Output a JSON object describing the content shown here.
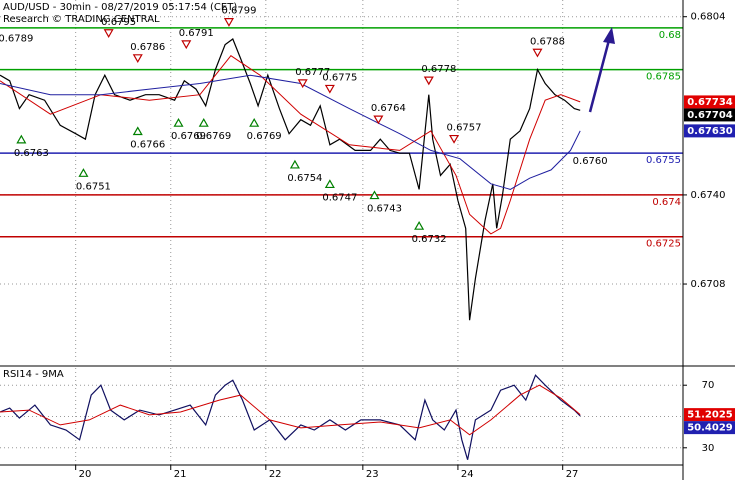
{
  "chart_data": [
    {
      "type": "line",
      "title": "AUD/USD - 30min - 08/27/2019 05:17:54 (CET)",
      "subtitle": "Research © TRADING CENTRAL",
      "xlim": [
        0,
        352
      ],
      "ylim": [
        0.668,
        0.681
      ],
      "yticks": [
        0.6804,
        {
          "value": 0.674,
          "label": "0.6740"
        },
        0.6708
      ],
      "grid": true,
      "series": [
        {
          "name": "AUD/USD",
          "color": "#000000",
          "x": [
            0,
            5,
            10,
            15,
            23,
            31,
            39,
            44,
            49,
            54,
            59,
            67,
            75,
            82,
            90,
            95,
            101,
            106,
            111,
            116,
            120,
            124,
            129,
            133,
            138,
            144,
            149,
            155,
            160,
            165,
            170,
            175,
            183,
            191,
            196,
            201,
            206,
            211,
            216,
            221,
            223,
            227,
            232,
            236,
            240,
            242,
            245,
            250,
            254,
            256,
            259,
            263,
            268,
            273,
            277,
            281,
            286,
            291,
            296,
            299
          ],
          "values": [
            0.6783,
            0.6781,
            0.6771,
            0.6776,
            0.6774,
            0.6765,
            0.6762,
            0.676,
            0.6776,
            0.6783,
            0.6776,
            0.6774,
            0.6776,
            0.6776,
            0.6774,
            0.6781,
            0.6778,
            0.6772,
            0.6785,
            0.6794,
            0.6796,
            0.6789,
            0.678,
            0.6772,
            0.6783,
            0.6771,
            0.6762,
            0.6767,
            0.6765,
            0.6772,
            0.6758,
            0.676,
            0.6756,
            0.6756,
            0.676,
            0.6756,
            0.6755,
            0.6755,
            0.6742,
            0.6776,
            0.676,
            0.6747,
            0.6751,
            0.6738,
            0.6728,
            0.6695,
            0.671,
            0.6731,
            0.6744,
            0.6728,
            0.674,
            0.676,
            0.6763,
            0.6771,
            0.6785,
            0.678,
            0.6776,
            0.6774,
            0.6771,
            0.67704
          ]
        },
        {
          "name": "MA fast",
          "color": "#d00000",
          "x": [
            0,
            26,
            52,
            77,
            103,
            119,
            134,
            155,
            180,
            206,
            222,
            235,
            242,
            253,
            258,
            263,
            273,
            281,
            289,
            299
          ],
          "values": [
            0.6781,
            0.6769,
            0.6776,
            0.6774,
            0.6776,
            0.679,
            0.6783,
            0.6769,
            0.6758,
            0.6756,
            0.6763,
            0.6747,
            0.6733,
            0.6726,
            0.6728,
            0.6738,
            0.676,
            0.6774,
            0.6776,
            0.67734
          ]
        },
        {
          "name": "MA slow",
          "color": "#2020a0",
          "x": [
            0,
            26,
            52,
            77,
            103,
            129,
            155,
            180,
            206,
            222,
            237,
            253,
            263,
            273,
            284,
            294,
            299
          ],
          "values": [
            0.678,
            0.6776,
            0.6776,
            0.6778,
            0.678,
            0.6783,
            0.678,
            0.6771,
            0.6762,
            0.6756,
            0.6753,
            0.6744,
            0.6742,
            0.6746,
            0.6749,
            0.6756,
            0.6763
          ]
        }
      ],
      "levels": [
        {
          "value": 0.68,
          "color": "#00a000"
        },
        {
          "value": 0.6785,
          "color": "#00a000"
        },
        {
          "value": 0.6755,
          "color": "#2020b0"
        },
        {
          "value": 0.674,
          "color": "#c00000"
        },
        {
          "value": 0.6725,
          "color": "#c00000"
        }
      ],
      "annotations": [
        {
          "x": 3,
          "value": 0.6789,
          "dir": "high",
          "marker": false
        },
        {
          "x": 56,
          "value": 0.6795,
          "dir": "high"
        },
        {
          "x": 71,
          "value": 0.6786,
          "dir": "high"
        },
        {
          "x": 96,
          "value": 0.6791,
          "dir": "high"
        },
        {
          "x": 118,
          "value": 0.6799,
          "dir": "high"
        },
        {
          "x": 156,
          "value": 0.6777,
          "dir": "high"
        },
        {
          "x": 170,
          "value": 0.6775,
          "dir": "high"
        },
        {
          "x": 195,
          "value": 0.6764,
          "dir": "high"
        },
        {
          "x": 221,
          "value": 0.6778,
          "dir": "high"
        },
        {
          "x": 234,
          "value": 0.6757,
          "dir": "high"
        },
        {
          "x": 277,
          "value": 0.6788,
          "dir": "high"
        },
        {
          "x": 11,
          "value": 0.6763,
          "dir": "low"
        },
        {
          "x": 43,
          "value": 0.6751,
          "dir": "low"
        },
        {
          "x": 71,
          "value": 0.6766,
          "dir": "low"
        },
        {
          "x": 92,
          "value": 0.6769,
          "dir": "low"
        },
        {
          "x": 105,
          "value": 0.6769,
          "dir": "low"
        },
        {
          "x": 131,
          "value": 0.6769,
          "dir": "low"
        },
        {
          "x": 152,
          "value": 0.6754,
          "dir": "low"
        },
        {
          "x": 170,
          "value": 0.6747,
          "dir": "low"
        },
        {
          "x": 193,
          "value": 0.6743,
          "dir": "low"
        },
        {
          "x": 216,
          "value": 0.6732,
          "dir": "low"
        },
        {
          "x": 299,
          "value": 0.676,
          "label": "0.6760",
          "dir": "low",
          "marker": false
        }
      ],
      "last_labels": [
        {
          "value": 0.67734,
          "color": "#e00000"
        },
        {
          "value": 0.67704,
          "color": "#000000"
        },
        {
          "value": 0.6763,
          "label": "0.67630",
          "color": "#2020b0"
        }
      ]
    },
    {
      "type": "line",
      "title": "RSI14 - 9MA",
      "xlim": [
        0,
        352
      ],
      "ylim": [
        19,
        81
      ],
      "yticks": [
        30,
        70
      ],
      "hlines": [
        50
      ],
      "grid": true,
      "xticks": [
        {
          "value": 39,
          "label": "20"
        },
        {
          "value": 88,
          "label": "21"
        },
        {
          "value": 137,
          "label": "22"
        },
        {
          "value": 187,
          "label": "23"
        },
        {
          "value": 236,
          "label": "24"
        },
        {
          "value": 290,
          "label": "27"
        }
      ],
      "series": [
        {
          "name": "RSI14",
          "color": "#101060",
          "x": [
            0,
            5,
            10,
            18,
            26,
            34,
            41,
            47,
            52,
            57,
            64,
            72,
            82,
            90,
            98,
            106,
            111,
            116,
            120,
            125,
            131,
            139,
            147,
            155,
            162,
            170,
            178,
            186,
            196,
            206,
            214,
            219,
            223,
            229,
            235,
            238,
            241,
            245,
            253,
            258,
            265,
            271,
            276,
            281,
            289,
            296,
            299
          ],
          "values": [
            52.9,
            55.4,
            49,
            57.3,
            44.6,
            41.4,
            35.1,
            63.7,
            70,
            54.1,
            47.8,
            54.1,
            51,
            54.1,
            57.3,
            44.6,
            63.7,
            70,
            73.2,
            60.5,
            41.4,
            47.8,
            35.1,
            44.6,
            41.4,
            47.8,
            41.4,
            47.8,
            47.8,
            44.6,
            35.1,
            60.5,
            47.8,
            41.4,
            54.1,
            35.1,
            22.4,
            47.8,
            54.1,
            66.8,
            70,
            60.5,
            76.4,
            70,
            60.5,
            54.1,
            50.4029
          ]
        },
        {
          "name": "9MA",
          "color": "#d00000",
          "x": [
            0,
            15,
            31,
            46,
            62,
            77,
            93,
            113,
            124,
            139,
            155,
            175,
            196,
            216,
            232,
            242,
            253,
            268,
            278,
            289,
            299
          ],
          "values": [
            52.9,
            54.1,
            44.6,
            47.8,
            57.3,
            51,
            52.9,
            60.5,
            63.7,
            47.8,
            42.7,
            44.6,
            46.5,
            42.7,
            47.8,
            38.3,
            47.8,
            63.7,
            70,
            61.7,
            51.2025
          ]
        }
      ],
      "last_labels": [
        {
          "value": 51.2025,
          "color": "#e00000"
        },
        {
          "value": 50.4029,
          "color": "#2020b0"
        }
      ]
    }
  ]
}
